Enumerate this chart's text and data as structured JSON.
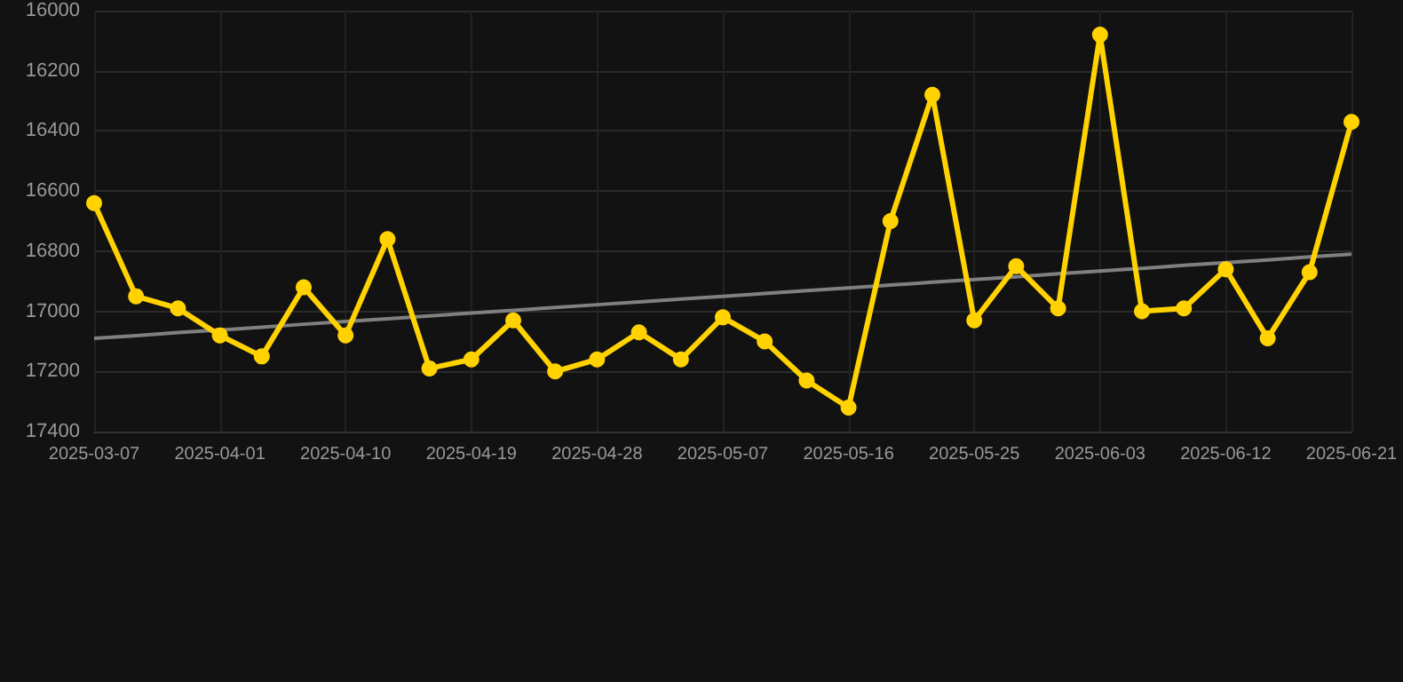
{
  "chart_data": {
    "type": "line",
    "categories": [
      "2025-03-07",
      null,
      null,
      "2025-04-01",
      null,
      null,
      "2025-04-10",
      null,
      null,
      "2025-04-19",
      null,
      null,
      "2025-04-28",
      null,
      null,
      "2025-05-07",
      null,
      null,
      "2025-05-16",
      null,
      null,
      "2025-05-25",
      null,
      null,
      "2025-06-03",
      null,
      null,
      "2025-06-12",
      null,
      null,
      "2025-06-21"
    ],
    "series": [
      {
        "color": "#ffd200",
        "marker": "circle",
        "values": [
          16640,
          16950,
          16990,
          17080,
          17150,
          16920,
          17080,
          16760,
          17190,
          17160,
          17030,
          17200,
          17160,
          17070,
          17160,
          17020,
          17100,
          17230,
          17320,
          16700,
          16280,
          17030,
          16850,
          16990,
          16080,
          17000,
          16990,
          16860,
          17090,
          16870,
          16370
        ]
      },
      {
        "color": "#808080",
        "marker": "none",
        "values": [
          17090,
          17081,
          17071,
          17062,
          17053,
          17043,
          17034,
          17025,
          17015,
          17006,
          16997,
          16987,
          16978,
          16969,
          16959,
          16950,
          16941,
          16931,
          16922,
          16913,
          16903,
          16894,
          16885,
          16875,
          16866,
          16857,
          16847,
          16838,
          16829,
          16819,
          16810
        ]
      }
    ],
    "ylim": [
      17400,
      16000
    ],
    "yticks": [
      16000,
      16200,
      16400,
      16600,
      16800,
      17000,
      17200,
      17400
    ],
    "grid": true
  }
}
